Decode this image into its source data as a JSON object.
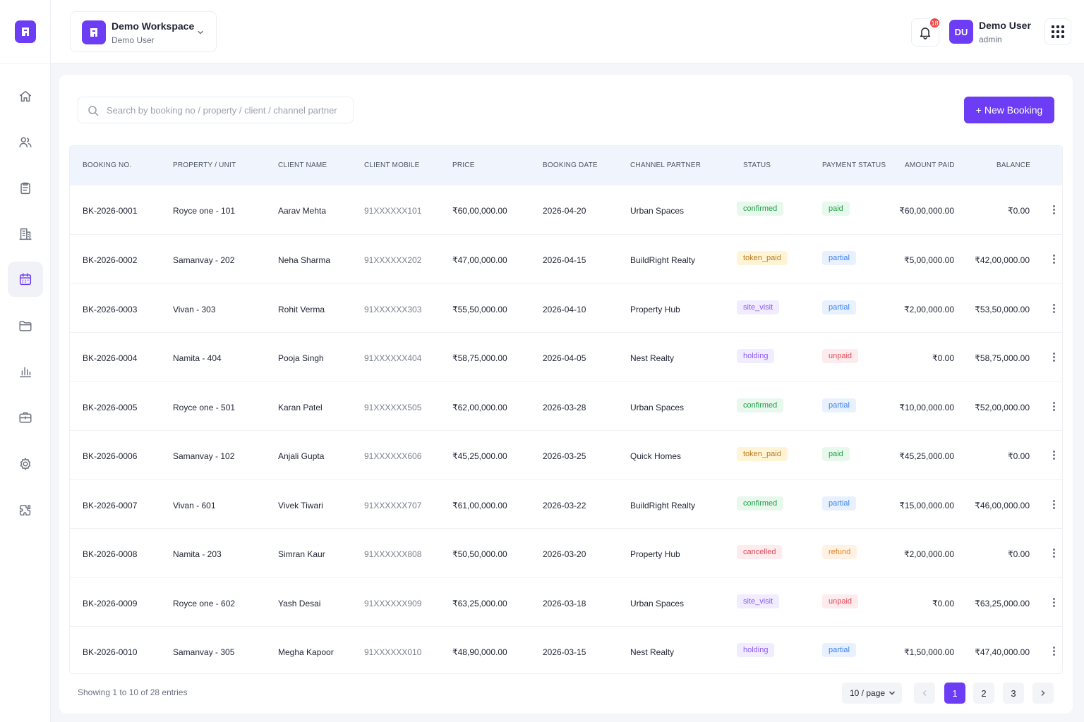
{
  "workspace": {
    "name": "Demo Workspace",
    "user": "Demo User"
  },
  "header": {
    "notification_count": "18",
    "user_initials": "DU",
    "user_name": "Demo User",
    "user_role": "admin"
  },
  "sidebar": {
    "items": [
      {
        "icon": "home-icon"
      },
      {
        "icon": "users-icon"
      },
      {
        "icon": "clipboard-icon"
      },
      {
        "icon": "building-icon"
      },
      {
        "icon": "calendar-icon",
        "active": true
      },
      {
        "icon": "folder-icon"
      },
      {
        "icon": "bar-chart-icon"
      },
      {
        "icon": "briefcase-icon"
      },
      {
        "icon": "settings-icon"
      },
      {
        "icon": "puzzle-icon"
      }
    ]
  },
  "toolbar": {
    "search_placeholder": "Search by booking no / property / client / channel partner",
    "new_booking_label": "New Booking"
  },
  "table": {
    "columns": [
      "BOOKING NO.",
      "PROPERTY / UNIT",
      "CLIENT NAME",
      "CLIENT MOBILE",
      "PRICE",
      "BOOKING DATE",
      "CHANNEL PARTNER",
      "STATUS",
      "PAYMENT STATUS",
      "AMOUNT PAID",
      "BALANCE"
    ],
    "rows": [
      {
        "booking_no": "BK-2026-0001",
        "property": "Royce one - 101",
        "client": "Aarav Mehta",
        "mobile": "91XXXXXX101",
        "price": "₹60,00,000.00",
        "date": "2026-04-20",
        "partner": "Urban Spaces",
        "status": "confirmed",
        "payment": "paid",
        "paid": "₹60,00,000.00",
        "balance": "₹0.00"
      },
      {
        "booking_no": "BK-2026-0002",
        "property": "Samanvay - 202",
        "client": "Neha Sharma",
        "mobile": "91XXXXXX202",
        "price": "₹47,00,000.00",
        "date": "2026-04-15",
        "partner": "BuildRight Realty",
        "status": "token_paid",
        "payment": "partial",
        "paid": "₹5,00,000.00",
        "balance": "₹42,00,000.00"
      },
      {
        "booking_no": "BK-2026-0003",
        "property": "Vivan - 303",
        "client": "Rohit Verma",
        "mobile": "91XXXXXX303",
        "price": "₹55,50,000.00",
        "date": "2026-04-10",
        "partner": "Property Hub",
        "status": "site_visit",
        "payment": "partial",
        "paid": "₹2,00,000.00",
        "balance": "₹53,50,000.00"
      },
      {
        "booking_no": "BK-2026-0004",
        "property": "Namita - 404",
        "client": "Pooja Singh",
        "mobile": "91XXXXXX404",
        "price": "₹58,75,000.00",
        "date": "2026-04-05",
        "partner": "Nest Realty",
        "status": "holding",
        "payment": "unpaid",
        "paid": "₹0.00",
        "balance": "₹58,75,000.00"
      },
      {
        "booking_no": "BK-2026-0005",
        "property": "Royce one - 501",
        "client": "Karan Patel",
        "mobile": "91XXXXXX505",
        "price": "₹62,00,000.00",
        "date": "2026-03-28",
        "partner": "Urban Spaces",
        "status": "confirmed",
        "payment": "partial",
        "paid": "₹10,00,000.00",
        "balance": "₹52,00,000.00"
      },
      {
        "booking_no": "BK-2026-0006",
        "property": "Samanvay - 102",
        "client": "Anjali Gupta",
        "mobile": "91XXXXXX606",
        "price": "₹45,25,000.00",
        "date": "2026-03-25",
        "partner": "Quick Homes",
        "status": "token_paid",
        "payment": "paid",
        "paid": "₹45,25,000.00",
        "balance": "₹0.00"
      },
      {
        "booking_no": "BK-2026-0007",
        "property": "Vivan - 601",
        "client": "Vivek Tiwari",
        "mobile": "91XXXXXX707",
        "price": "₹61,00,000.00",
        "date": "2026-03-22",
        "partner": "BuildRight Realty",
        "status": "confirmed",
        "payment": "partial",
        "paid": "₹15,00,000.00",
        "balance": "₹46,00,000.00"
      },
      {
        "booking_no": "BK-2026-0008",
        "property": "Namita - 203",
        "client": "Simran Kaur",
        "mobile": "91XXXXXX808",
        "price": "₹50,50,000.00",
        "date": "2026-03-20",
        "partner": "Property Hub",
        "status": "cancelled",
        "payment": "refund",
        "paid": "₹2,00,000.00",
        "balance": "₹0.00"
      },
      {
        "booking_no": "BK-2026-0009",
        "property": "Royce one - 602",
        "client": "Yash Desai",
        "mobile": "91XXXXXX909",
        "price": "₹63,25,000.00",
        "date": "2026-03-18",
        "partner": "Urban Spaces",
        "status": "site_visit",
        "payment": "unpaid",
        "paid": "₹0.00",
        "balance": "₹63,25,000.00"
      },
      {
        "booking_no": "BK-2026-0010",
        "property": "Samanvay - 305",
        "client": "Megha Kapoor",
        "mobile": "91XXXXXX010",
        "price": "₹48,90,000.00",
        "date": "2026-03-15",
        "partner": "Nest Realty",
        "status": "holding",
        "payment": "partial",
        "paid": "₹1,50,000.00",
        "balance": "₹47,40,000.00"
      }
    ]
  },
  "status_colors": {
    "confirmed": "#22a04b",
    "token_paid": "#b7791f",
    "site_visit": "#8b5cf6",
    "holding": "#8b5cf6",
    "cancelled": "#e04a5a",
    "paid": "#22a04b",
    "partial": "#3b82f6",
    "unpaid": "#e04a5a",
    "refund": "#e8841f"
  },
  "footer": {
    "showing_text": "Showing 1 to 10 of 28 entries",
    "page_size_label": "10 / page",
    "pages": [
      "1",
      "2",
      "3"
    ],
    "current_page": "1"
  },
  "accent_color": "#6d3df5"
}
